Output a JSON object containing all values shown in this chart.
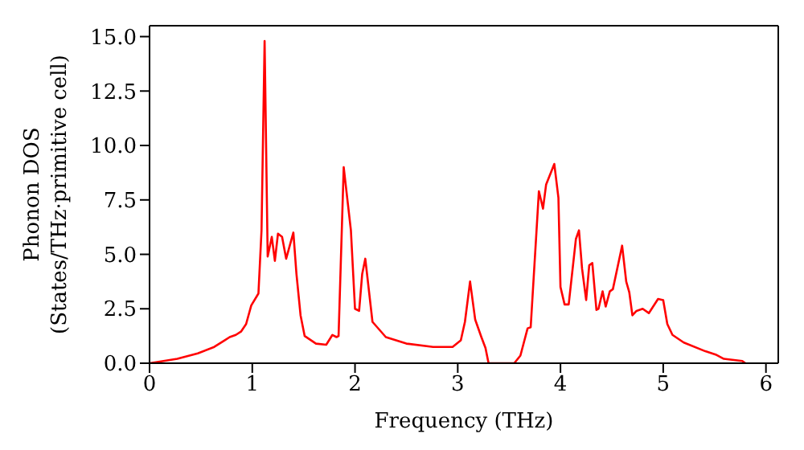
{
  "chart_data": {
    "type": "line",
    "xlabel": "Frequency (THz)",
    "ylabel": "Phonon DOS\n(States/THz·primitive cell)",
    "xlim": [
      0,
      6.12
    ],
    "xticks": [
      0,
      1,
      2,
      3,
      4,
      5,
      6
    ],
    "ylim": [
      0,
      15.5
    ],
    "yticks": [
      {
        "value": 0,
        "label": "0.0"
      },
      {
        "value": 2.5,
        "label": "2.5"
      },
      {
        "value": 5,
        "label": "5.0"
      },
      {
        "value": 7.5,
        "label": "7.5"
      },
      {
        "value": 10,
        "label": "10.0"
      },
      {
        "value": 12.5,
        "label": "12.5"
      },
      {
        "value": 15,
        "label": "15.0"
      }
    ],
    "marker": "none",
    "line_style": "solid",
    "series": [
      {
        "color": "#ff0000",
        "x": [
          0,
          0.27,
          0.47,
          0.63,
          0.73,
          0.78,
          0.84,
          0.89,
          0.94,
          0.99,
          1.06,
          1.09,
          1.12,
          1.15,
          1.19,
          1.22,
          1.25,
          1.29,
          1.33,
          1.4,
          1.43,
          1.47,
          1.51,
          1.62,
          1.72,
          1.78,
          1.82,
          1.84,
          1.89,
          1.96,
          2.0,
          2.04,
          2.07,
          2.1,
          2.17,
          2.3,
          2.5,
          2.76,
          2.95,
          3.03,
          3.07,
          3.12,
          3.17,
          3.23,
          3.27,
          3.3,
          3.55,
          3.61,
          3.68,
          3.71,
          3.79,
          3.83,
          3.86,
          3.94,
          3.98,
          4.0,
          4.04,
          4.08,
          4.15,
          4.18,
          4.21,
          4.25,
          4.28,
          4.31,
          4.35,
          4.37,
          4.41,
          4.44,
          4.48,
          4.51,
          4.6,
          4.64,
          4.67,
          4.7,
          4.74,
          4.8,
          4.86,
          4.95,
          5.0,
          5.04,
          5.09,
          5.2,
          5.41,
          5.51,
          5.59,
          5.77,
          5.8
        ],
        "values": [
          0,
          0.2,
          0.45,
          0.75,
          1.05,
          1.2,
          1.3,
          1.45,
          1.8,
          2.65,
          3.2,
          6.1,
          14.8,
          4.9,
          5.8,
          4.7,
          5.95,
          5.8,
          4.8,
          6.0,
          4.1,
          2.2,
          1.25,
          0.9,
          0.85,
          1.3,
          1.2,
          1.25,
          9.0,
          6.1,
          2.5,
          2.4,
          4.1,
          4.8,
          1.9,
          1.2,
          0.9,
          0.75,
          0.75,
          1.05,
          1.9,
          3.75,
          2.0,
          1.2,
          0.7,
          0,
          0,
          0.35,
          1.6,
          1.65,
          7.9,
          7.1,
          8.2,
          9.15,
          7.6,
          3.5,
          2.7,
          2.7,
          5.7,
          6.1,
          4.35,
          2.9,
          4.5,
          4.6,
          2.45,
          2.5,
          3.3,
          2.6,
          3.3,
          3.4,
          5.4,
          3.75,
          3.25,
          2.2,
          2.4,
          2.5,
          2.3,
          2.95,
          2.9,
          1.8,
          1.3,
          0.95,
          0.55,
          0.4,
          0.2,
          0.1,
          0
        ]
      }
    ]
  }
}
